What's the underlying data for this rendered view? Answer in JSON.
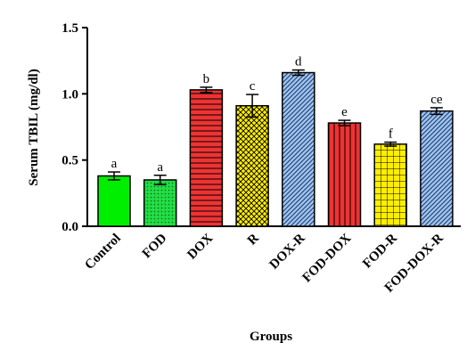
{
  "chart_data": {
    "type": "bar",
    "title": "",
    "xlabel": "Groups",
    "ylabel": "Serum TBIL (mg/dl)",
    "ylim": [
      0,
      1.5
    ],
    "yticks": [
      "0.0",
      "0.5",
      "1.0",
      "1.5"
    ],
    "ytick_values": [
      0,
      0.5,
      1.0,
      1.5
    ],
    "categories": [
      "Control",
      "FOD",
      "DOX",
      "R",
      "DOX-R",
      "FOD-DOX",
      "FOD-R",
      "FOD-DOX-R"
    ],
    "values": [
      0.38,
      0.35,
      1.03,
      0.91,
      1.16,
      0.78,
      0.62,
      0.87
    ],
    "errors": [
      0.03,
      0.035,
      0.02,
      0.085,
      0.02,
      0.02,
      0.015,
      0.025
    ],
    "significance": [
      "a",
      "a",
      "b",
      "c",
      "d",
      "e",
      "f",
      "ce"
    ],
    "bar_styles": [
      {
        "fill": "#00ee00",
        "pattern": "solid"
      },
      {
        "fill": "#22dd44",
        "pattern": "dots"
      },
      {
        "fill": "#ee3333",
        "pattern": "horizontal-lines"
      },
      {
        "fill": "#ffee00",
        "pattern": "crosshatch"
      },
      {
        "fill": "#9fc5ee",
        "pattern": "diagonal-lines"
      },
      {
        "fill": "#ee3333",
        "pattern": "vertical-lines"
      },
      {
        "fill": "#ffee00",
        "pattern": "grid"
      },
      {
        "fill": "#9fc5ee",
        "pattern": "diagonal-lines"
      }
    ],
    "grid": false,
    "legend": "none"
  }
}
